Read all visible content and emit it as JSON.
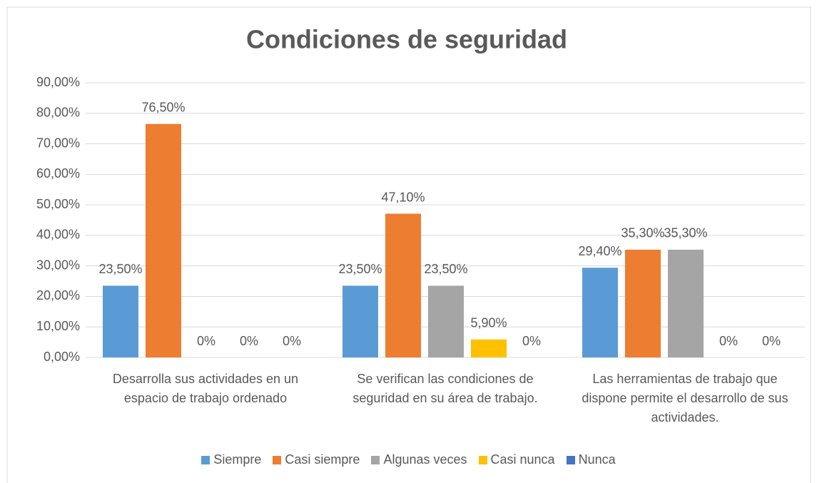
{
  "chart_data": {
    "type": "bar",
    "title": "Condiciones de seguridad",
    "categories": [
      "Desarrolla sus actividades en un espacio de trabajo ordenado",
      "Se verifican las condiciones de seguridad en su área de trabajo.",
      "Las herramientas de trabajo que dispone permite el desarrollo de sus actividades."
    ],
    "series": [
      {
        "name": "Siempre",
        "color": "#5b9bd5",
        "values": [
          23.5,
          23.5,
          29.4
        ],
        "value_labels": [
          "23,50%",
          "23,50%",
          "29,40%"
        ]
      },
      {
        "name": "Casi siempre",
        "color": "#ed7d31",
        "values": [
          76.5,
          47.1,
          35.3
        ],
        "value_labels": [
          "76,50%",
          "47,10%",
          "35,30%"
        ]
      },
      {
        "name": "Algunas veces",
        "color": "#a5a5a5",
        "values": [
          0,
          23.5,
          35.3
        ],
        "value_labels": [
          "0%",
          "23,50%",
          "35,30%"
        ]
      },
      {
        "name": "Casi nunca",
        "color": "#ffc000",
        "values": [
          0,
          5.9,
          0
        ],
        "value_labels": [
          "0%",
          "5,90%",
          "0%"
        ]
      },
      {
        "name": "Nunca",
        "color": "#4472c4",
        "values": [
          0,
          0,
          0
        ],
        "value_labels": [
          "0%",
          "0%",
          "0%"
        ]
      }
    ],
    "ylim": [
      0,
      90
    ],
    "yticks": [
      {
        "value": 0,
        "label": "0,00%"
      },
      {
        "value": 10,
        "label": "10,00%"
      },
      {
        "value": 20,
        "label": "20,00%"
      },
      {
        "value": 30,
        "label": "30,00%"
      },
      {
        "value": 40,
        "label": "40,00%"
      },
      {
        "value": 50,
        "label": "50,00%"
      },
      {
        "value": 60,
        "label": "60,00%"
      },
      {
        "value": 70,
        "label": "70,00%"
      },
      {
        "value": 80,
        "label": "80,00%"
      },
      {
        "value": 90,
        "label": "90,00%"
      }
    ],
    "grid": true,
    "legend": "bottom"
  }
}
